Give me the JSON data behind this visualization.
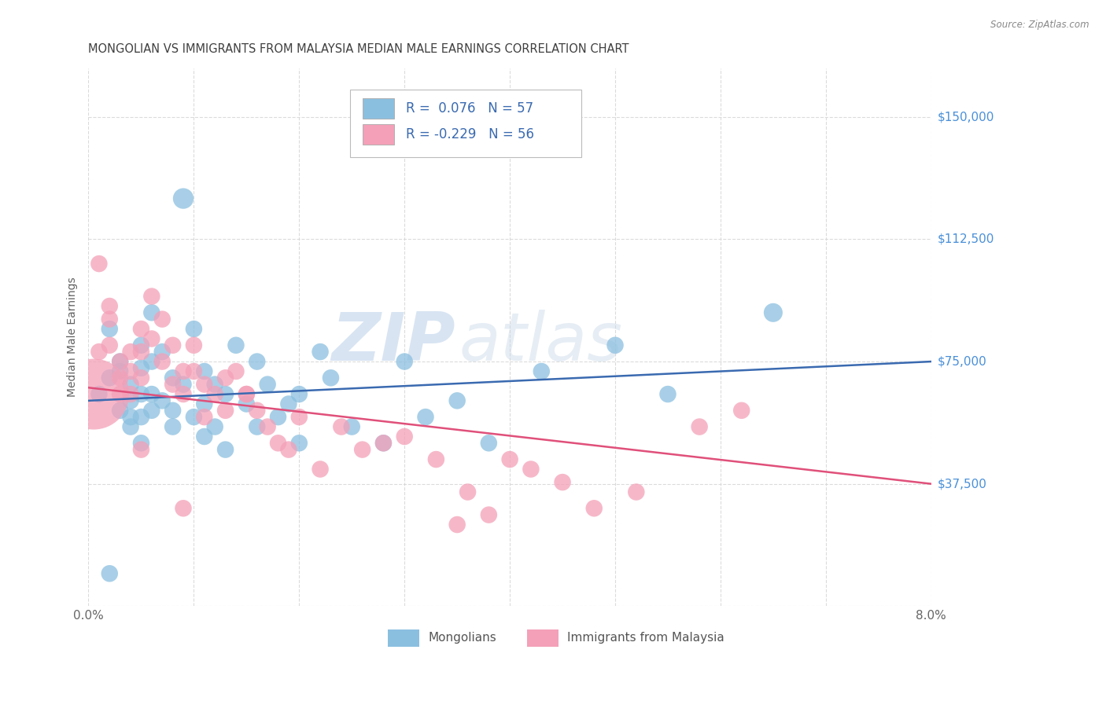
{
  "title": "MONGOLIAN VS IMMIGRANTS FROM MALAYSIA MEDIAN MALE EARNINGS CORRELATION CHART",
  "source": "Source: ZipAtlas.com",
  "ylabel": "Median Male Earnings",
  "xlim": [
    0.0,
    0.08
  ],
  "ylim": [
    0,
    165000
  ],
  "yticks": [
    0,
    37500,
    75000,
    112500,
    150000
  ],
  "ytick_labels": [
    "",
    "$37,500",
    "$75,000",
    "$112,500",
    "$150,000"
  ],
  "xticks": [
    0.0,
    0.01,
    0.02,
    0.03,
    0.04,
    0.05,
    0.06,
    0.07,
    0.08
  ],
  "xtick_labels": [
    "0.0%",
    "",
    "",
    "",
    "",
    "",
    "",
    "",
    "8.0%"
  ],
  "legend_labels": [
    "Mongolians",
    "Immigrants from Malaysia"
  ],
  "R_mongolian": "0.076",
  "N_mongolian": "57",
  "R_malaysia": "-0.229",
  "N_malaysia": "56",
  "blue_color": "#8bbfe0",
  "pink_color": "#f4a0b8",
  "blue_line_color": "#3a6ab0",
  "pink_line_color": "#e0507a",
  "watermark_zip": "ZIP",
  "watermark_atlas": "atlas",
  "background_color": "#ffffff",
  "grid_color": "#d8d8d8",
  "title_color": "#404040",
  "axis_label_color": "#606060",
  "right_label_color": "#4a90d9",
  "legend_text_color": "#3a6ab0",
  "blue_line_y0": 63000,
  "blue_line_y1": 75000,
  "pink_line_y0": 67000,
  "pink_line_y1": 37500,
  "mongolian_x": [
    0.001,
    0.002,
    0.002,
    0.003,
    0.003,
    0.003,
    0.004,
    0.004,
    0.004,
    0.005,
    0.005,
    0.005,
    0.005,
    0.006,
    0.006,
    0.006,
    0.007,
    0.007,
    0.008,
    0.008,
    0.009,
    0.01,
    0.01,
    0.011,
    0.011,
    0.012,
    0.012,
    0.013,
    0.014,
    0.015,
    0.016,
    0.017,
    0.018,
    0.019,
    0.02,
    0.022,
    0.023,
    0.025,
    0.028,
    0.03,
    0.032,
    0.038,
    0.043,
    0.05,
    0.055,
    0.065,
    0.002,
    0.004,
    0.005,
    0.006,
    0.008,
    0.009,
    0.011,
    0.013,
    0.016,
    0.02,
    0.035
  ],
  "mongolian_y": [
    65000,
    85000,
    70000,
    75000,
    72000,
    60000,
    68000,
    63000,
    58000,
    80000,
    73000,
    65000,
    50000,
    90000,
    75000,
    60000,
    78000,
    63000,
    70000,
    55000,
    125000,
    85000,
    58000,
    72000,
    52000,
    68000,
    55000,
    65000,
    80000,
    62000,
    75000,
    68000,
    58000,
    62000,
    50000,
    78000,
    70000,
    55000,
    50000,
    75000,
    58000,
    50000,
    72000,
    80000,
    65000,
    90000,
    10000,
    55000,
    58000,
    65000,
    60000,
    68000,
    62000,
    48000,
    55000,
    65000,
    63000
  ],
  "mongolian_size": [
    20,
    20,
    20,
    20,
    20,
    20,
    20,
    20,
    20,
    20,
    20,
    20,
    20,
    20,
    20,
    20,
    20,
    20,
    20,
    20,
    30,
    20,
    20,
    20,
    20,
    20,
    20,
    20,
    20,
    20,
    20,
    20,
    20,
    20,
    20,
    20,
    20,
    20,
    20,
    20,
    20,
    20,
    20,
    20,
    20,
    25,
    20,
    20,
    20,
    20,
    20,
    20,
    20,
    20,
    20,
    20,
    20
  ],
  "malaysia_x": [
    0.0005,
    0.001,
    0.001,
    0.002,
    0.002,
    0.002,
    0.003,
    0.003,
    0.003,
    0.004,
    0.004,
    0.004,
    0.005,
    0.005,
    0.005,
    0.006,
    0.006,
    0.007,
    0.007,
    0.008,
    0.008,
    0.009,
    0.009,
    0.01,
    0.01,
    0.011,
    0.011,
    0.012,
    0.013,
    0.013,
    0.014,
    0.015,
    0.016,
    0.017,
    0.018,
    0.019,
    0.02,
    0.022,
    0.024,
    0.026,
    0.028,
    0.03,
    0.033,
    0.036,
    0.04,
    0.042,
    0.045,
    0.048,
    0.052,
    0.058,
    0.062,
    0.015,
    0.005,
    0.009,
    0.038,
    0.035
  ],
  "malaysia_y": [
    65000,
    105000,
    78000,
    92000,
    88000,
    80000,
    75000,
    70000,
    65000,
    78000,
    72000,
    65000,
    85000,
    78000,
    70000,
    95000,
    82000,
    88000,
    75000,
    80000,
    68000,
    72000,
    65000,
    80000,
    72000,
    68000,
    58000,
    65000,
    70000,
    60000,
    72000,
    65000,
    60000,
    55000,
    50000,
    48000,
    58000,
    42000,
    55000,
    48000,
    50000,
    52000,
    45000,
    35000,
    45000,
    42000,
    38000,
    30000,
    35000,
    55000,
    60000,
    65000,
    48000,
    30000,
    28000,
    25000
  ],
  "malaysia_size": [
    350,
    20,
    20,
    20,
    20,
    20,
    20,
    20,
    20,
    20,
    20,
    20,
    20,
    20,
    20,
    20,
    20,
    20,
    20,
    20,
    20,
    20,
    20,
    20,
    20,
    20,
    20,
    20,
    20,
    20,
    20,
    20,
    20,
    20,
    20,
    20,
    20,
    20,
    20,
    20,
    20,
    20,
    20,
    20,
    20,
    20,
    20,
    20,
    20,
    20,
    20,
    20,
    20,
    20,
    20,
    20
  ]
}
